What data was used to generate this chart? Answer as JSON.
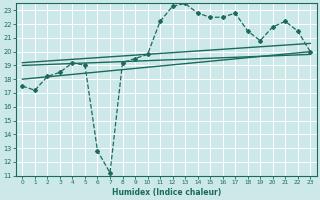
{
  "bg_color": "#cde8e8",
  "line_color": "#1a6b5a",
  "grid_color": "#b0d8d8",
  "xlabel": "Humidex (Indice chaleur)",
  "ylim": [
    11,
    23.5
  ],
  "xlim": [
    -0.5,
    23.5
  ],
  "yticks": [
    11,
    12,
    13,
    14,
    15,
    16,
    17,
    18,
    19,
    20,
    21,
    22,
    23
  ],
  "xticks": [
    0,
    1,
    2,
    3,
    4,
    5,
    6,
    7,
    8,
    9,
    10,
    11,
    12,
    13,
    14,
    15,
    16,
    17,
    18,
    19,
    20,
    21,
    22,
    23
  ],
  "line1_x": [
    0,
    1,
    2,
    3,
    4,
    5,
    6,
    7,
    8,
    9,
    10,
    11,
    12,
    13,
    14,
    15,
    16,
    17,
    18,
    19,
    20,
    21,
    22,
    23
  ],
  "line1_y": [
    17.5,
    17.2,
    18.2,
    18.5,
    19.2,
    19.0,
    12.8,
    11.2,
    19.2,
    19.5,
    19.8,
    22.2,
    23.3,
    23.5,
    22.8,
    22.5,
    22.5,
    22.8,
    21.5,
    20.8,
    21.8,
    22.2,
    21.5,
    20.0
  ],
  "line2_x": [
    0,
    23
  ],
  "line2_y": [
    18.0,
    20.0
  ],
  "line3_x": [
    0,
    23
  ],
  "line3_y": [
    19.0,
    19.8
  ],
  "line4_x": [
    0,
    23
  ],
  "line4_y": [
    19.2,
    20.6
  ]
}
